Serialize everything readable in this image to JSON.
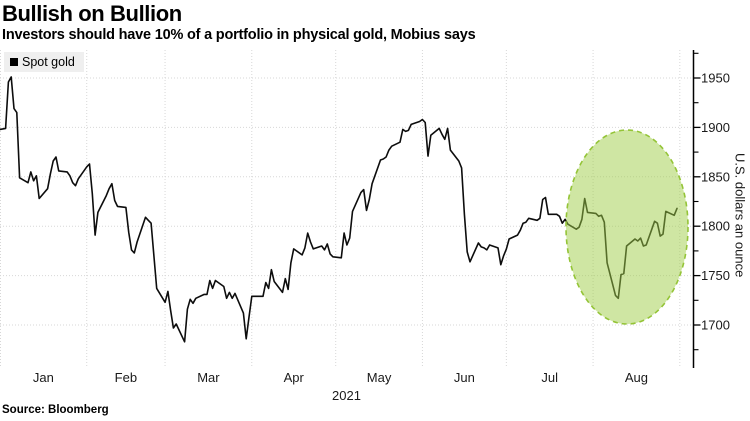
{
  "header": {
    "title": "Bullish on Bullion",
    "subtitle": "Investors should have 10% of a portfolio in physical gold, Mobius says"
  },
  "legend": {
    "label": "Spot gold"
  },
  "source": "Source: Bloomberg",
  "colors": {
    "line": "#0d0d0d",
    "grid": "#d7d7d7",
    "axis": "#000000",
    "highlight_fill": "#9fcd47",
    "highlight_fill_opacity": 0.5,
    "highlight_stroke": "#94c437",
    "legend_bg": "#efefef"
  },
  "chart_data": {
    "type": "line",
    "title": "Spot gold",
    "x_axis": {
      "year_label": "2021",
      "months": [
        "Jan",
        "Feb",
        "Mar",
        "Apr",
        "May",
        "Jun",
        "Jul",
        "Aug"
      ],
      "grid": "dotted"
    },
    "y_axis": {
      "label": "U.S. dollars an ounce",
      "side": "right",
      "ticks_major": [
        1950,
        1900,
        1850,
        1800,
        1750,
        1700
      ],
      "ticks_minor": [
        1975,
        1925,
        1875,
        1825,
        1775,
        1725,
        1675
      ],
      "range": [
        1675,
        1975
      ],
      "grid": "dotted"
    },
    "highlight": {
      "shape": "dashed-ellipse",
      "region": "August 2021 volatility",
      "fill": "#9fcd47",
      "stroke": "#94c437"
    },
    "series": [
      {
        "name": "Spot gold",
        "unit": "U.S. dollars an ounce",
        "dates": [
          "01-01",
          "01-03",
          "01-04",
          "01-05",
          "01-06",
          "01-07",
          "01-08",
          "01-11",
          "01-12",
          "01-13",
          "01-14",
          "01-15",
          "01-18",
          "01-19",
          "01-20",
          "01-21",
          "01-22",
          "01-25",
          "01-26",
          "01-27",
          "01-28",
          "01-29",
          "02-01",
          "02-02",
          "02-03",
          "02-04",
          "02-05",
          "02-08",
          "02-09",
          "02-10",
          "02-11",
          "02-12",
          "02-15",
          "02-16",
          "02-17",
          "02-18",
          "02-19",
          "02-22",
          "02-23",
          "02-24",
          "02-25",
          "02-26",
          "03-01",
          "03-02",
          "03-03",
          "03-04",
          "03-05",
          "03-08",
          "03-09",
          "03-10",
          "03-11",
          "03-12",
          "03-15",
          "03-16",
          "03-17",
          "03-18",
          "03-19",
          "03-22",
          "03-23",
          "03-24",
          "03-25",
          "03-26",
          "03-29",
          "03-30",
          "03-31",
          "04-01",
          "04-05",
          "04-06",
          "04-07",
          "04-08",
          "04-09",
          "04-12",
          "04-13",
          "04-14",
          "04-15",
          "04-16",
          "04-19",
          "04-20",
          "04-21",
          "04-22",
          "04-23",
          "04-26",
          "04-27",
          "04-28",
          "04-29",
          "04-30",
          "05-03",
          "05-04",
          "05-05",
          "05-06",
          "05-07",
          "05-10",
          "05-11",
          "05-12",
          "05-13",
          "05-14",
          "05-17",
          "05-18",
          "05-19",
          "05-20",
          "05-21",
          "05-24",
          "05-25",
          "05-26",
          "05-27",
          "05-28",
          "05-31",
          "06-01",
          "06-02",
          "06-03",
          "06-04",
          "06-07",
          "06-08",
          "06-09",
          "06-10",
          "06-11",
          "06-14",
          "06-15",
          "06-16",
          "06-17",
          "06-18",
          "06-21",
          "06-22",
          "06-23",
          "06-24",
          "06-25",
          "06-28",
          "06-29",
          "06-30",
          "07-01",
          "07-02",
          "07-05",
          "07-06",
          "07-07",
          "07-08",
          "07-09",
          "07-12",
          "07-13",
          "07-14",
          "07-15",
          "07-16",
          "07-19",
          "07-20",
          "07-21",
          "07-22",
          "07-23",
          "07-26",
          "07-27",
          "07-28",
          "07-29",
          "07-30",
          "08-02",
          "08-03",
          "08-04",
          "08-05",
          "08-06",
          "08-09",
          "08-10",
          "08-11",
          "08-12",
          "08-13",
          "08-16",
          "08-17",
          "08-18",
          "08-19",
          "08-20",
          "08-23",
          "08-24",
          "08-25",
          "08-26",
          "08-27",
          "08-30",
          "08-31"
        ],
        "values": [
          1898,
          1899,
          1946,
          1951,
          1919,
          1915,
          1849,
          1844,
          1855,
          1846,
          1851,
          1828,
          1838,
          1853,
          1866,
          1870,
          1856,
          1855,
          1851,
          1844,
          1841,
          1848,
          1860,
          1863,
          1833,
          1791,
          1814,
          1831,
          1838,
          1843,
          1826,
          1820,
          1819,
          1794,
          1776,
          1773,
          1784,
          1809,
          1806,
          1803,
          1770,
          1737,
          1723,
          1734,
          1715,
          1697,
          1701,
          1683,
          1716,
          1726,
          1722,
          1727,
          1731,
          1731,
          1745,
          1737,
          1745,
          1739,
          1727,
          1733,
          1727,
          1732,
          1712,
          1686,
          1708,
          1729,
          1729,
          1743,
          1737,
          1756,
          1744,
          1733,
          1747,
          1736,
          1763,
          1777,
          1771,
          1778,
          1793,
          1784,
          1777,
          1780,
          1776,
          1782,
          1772,
          1769,
          1768,
          1793,
          1781,
          1788,
          1815,
          1834,
          1837,
          1816,
          1827,
          1843,
          1867,
          1868,
          1870,
          1877,
          1881,
          1885,
          1898,
          1896,
          1897,
          1903,
          1906,
          1908,
          1905,
          1871,
          1892,
          1899,
          1893,
          1888,
          1899,
          1877,
          1866,
          1859,
          1812,
          1774,
          1764,
          1783,
          1779,
          1778,
          1776,
          1781,
          1778,
          1761,
          1770,
          1777,
          1787,
          1791,
          1796,
          1803,
          1804,
          1808,
          1806,
          1808,
          1827,
          1829,
          1812,
          1812,
          1810,
          1803,
          1807,
          1802,
          1797,
          1799,
          1807,
          1828,
          1814,
          1813,
          1810,
          1811,
          1804,
          1763,
          1730,
          1727,
          1751,
          1752,
          1780,
          1787,
          1785,
          1788,
          1780,
          1781,
          1805,
          1803,
          1790,
          1792,
          1815,
          1811,
          1818
        ]
      }
    ]
  }
}
